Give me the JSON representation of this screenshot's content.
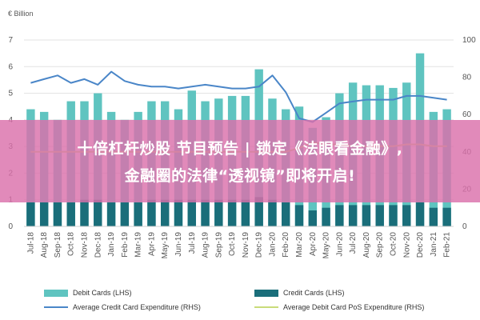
{
  "chart_data": {
    "type": "bar",
    "title": "",
    "ylabel_left": "€ Billion",
    "left_axis": {
      "ticks": [
        "0",
        "1",
        "2",
        "3",
        "4",
        "5",
        "6",
        "7"
      ],
      "range": [
        0,
        7
      ]
    },
    "right_axis": {
      "ticks": [
        "0",
        "20",
        "40",
        "60",
        "80",
        "100"
      ],
      "range": [
        0,
        100
      ]
    },
    "categories": [
      "Jul-18",
      "Aug-18",
      "Sep-18",
      "Oct-18",
      "Nov-18",
      "Dec-18",
      "Jan-19",
      "Feb-19",
      "Mar-19",
      "Apr-19",
      "May-19",
      "Jun-19",
      "Jul-19",
      "Aug-19",
      "Sep-19",
      "Oct-19",
      "Nov-19",
      "Dec-19",
      "Jan-20",
      "Feb-20",
      "Mar-20",
      "Apr-20",
      "May-20",
      "Jun-20",
      "Jul-20",
      "Aug-20",
      "Sep-20",
      "Oct-20",
      "Nov-20",
      "Dec-20",
      "Jan-21",
      "Feb-21"
    ],
    "x_tick_labels": [
      "Jul-18",
      "Sep-18",
      "Nov-18",
      "Jan-19",
      "Mar-19",
      "May-19",
      "Jul-19",
      "Sep-19",
      "Nov-19",
      "Jan-20",
      "Mar-20",
      "May-20",
      "Jul-20",
      "Sep-20",
      "Nov-20",
      "Jan-21"
    ],
    "x_tick_labels_all": [
      "Jul-18",
      "Aug-18",
      "Sep-18",
      "Oct-18",
      "Nov-18",
      "Dec-18",
      "Jan-19",
      "Feb-19",
      "Mar-19",
      "Apr-19",
      "May-19",
      "Jun-19",
      "Jul-19",
      "Aug-19",
      "Sep-19",
      "Oct-19",
      "Nov-19",
      "Dec-19",
      "Jan-20",
      "Feb-20",
      "Mar-20",
      "Apr-20",
      "May-20",
      "Jun-20",
      "Jul-20",
      "Aug-20",
      "Sep-20",
      "Oct-20",
      "Nov-20",
      "Dec-20",
      "Jan-21",
      "Feb-21"
    ],
    "series": [
      {
        "name": "Debit Cards (LHS)",
        "axis": "left",
        "kind": "bar",
        "color": "#5fc4c0",
        "values": [
          4.4,
          4.3,
          4.0,
          4.7,
          4.7,
          5.0,
          4.3,
          4.0,
          4.3,
          4.7,
          4.7,
          4.4,
          5.1,
          4.7,
          4.8,
          4.9,
          4.9,
          5.9,
          4.8,
          4.4,
          4.5,
          3.7,
          4.1,
          5.0,
          5.4,
          5.3,
          5.3,
          5.2,
          5.4,
          6.5,
          4.3,
          4.4
        ]
      },
      {
        "name": "Credit Cards (LHS)",
        "axis": "left",
        "kind": "bar",
        "color": "#1a6e7a",
        "values": [
          0.9,
          0.9,
          0.9,
          0.9,
          1.0,
          1.0,
          0.9,
          0.9,
          0.9,
          1.0,
          1.0,
          1.0,
          1.0,
          1.0,
          1.0,
          1.0,
          1.0,
          1.1,
          1.0,
          0.9,
          0.8,
          0.6,
          0.7,
          0.8,
          0.8,
          0.8,
          0.8,
          0.8,
          0.8,
          0.9,
          0.7,
          0.7
        ]
      },
      {
        "name": "Average Credit Card Expenditure (RHS)",
        "axis": "right",
        "kind": "line",
        "color": "#4a86c8",
        "values": [
          77,
          79,
          81,
          77,
          79,
          76,
          83,
          78,
          76,
          75,
          75,
          74,
          75,
          76,
          75,
          74,
          74,
          75,
          81,
          72,
          58,
          56,
          61,
          66,
          67,
          68,
          68,
          68,
          70,
          70,
          69,
          68
        ]
      },
      {
        "name": "Average Debit Card PoS Expenditure (RHS)",
        "axis": "right",
        "kind": "line",
        "color": "#c9dc7a",
        "values": [
          40,
          40,
          40,
          40,
          40,
          40,
          40,
          40,
          40,
          40,
          40,
          40,
          40,
          40,
          40,
          40,
          40,
          40,
          40,
          40,
          42,
          45,
          44,
          44,
          43,
          43,
          43,
          43,
          44,
          44,
          43,
          43
        ]
      }
    ],
    "grid": true,
    "legend_position": "bottom"
  },
  "banner": {
    "line1": "十倍杠杆炒股 节目预告 | 锁定《法眼看金融》,",
    "line2": "金融圈的法律“透视镜”即将开启!"
  }
}
